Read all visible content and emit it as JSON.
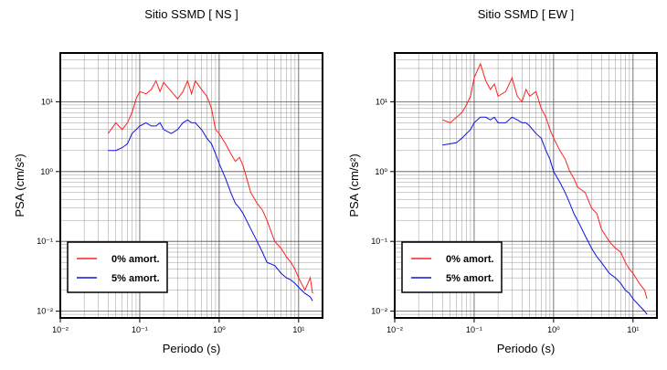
{
  "chart_data": [
    {
      "type": "line",
      "title": "Sitio SSMD [ NS ]",
      "x_label": "Periodo (s)",
      "y_label": "PSA (cm/s²)",
      "x_log": true,
      "y_log": true,
      "grid": true,
      "minor_grid": true,
      "legend": "lower left",
      "xlim": [
        0.01,
        20
      ],
      "ylim": [
        0.008,
        50
      ],
      "xticks": [
        {
          "value": 0.01,
          "label": "10⁻²"
        },
        {
          "value": 0.1,
          "label": "10⁻¹"
        },
        {
          "value": 1,
          "label": "10⁰"
        },
        {
          "value": 10,
          "label": "10¹"
        }
      ],
      "yticks": [
        {
          "value": 0.01,
          "label": "10⁻²"
        },
        {
          "value": 0.1,
          "label": "10⁻¹"
        },
        {
          "value": 1,
          "label": "10⁰"
        },
        {
          "value": 10,
          "label": "10¹"
        }
      ],
      "x": [
        0.04,
        0.05,
        0.06,
        0.07,
        0.08,
        0.09,
        0.1,
        0.12,
        0.14,
        0.16,
        0.18,
        0.2,
        0.25,
        0.3,
        0.35,
        0.4,
        0.45,
        0.5,
        0.6,
        0.7,
        0.8,
        0.9,
        1,
        1.2,
        1.4,
        1.6,
        1.8,
        2,
        2.5,
        3,
        3.5,
        4,
        5,
        6,
        7,
        8,
        9,
        10,
        12,
        14,
        15
      ],
      "series": [
        {
          "name": "0% amort.",
          "color": "#ff2020",
          "values": [
            3.5,
            5,
            4,
            5,
            7,
            11,
            14,
            13,
            15,
            20,
            14,
            19,
            14,
            11,
            14,
            20,
            13,
            20,
            15,
            12,
            8,
            4,
            3.5,
            2.5,
            1.8,
            1.4,
            1.6,
            1.2,
            0.5,
            0.35,
            0.28,
            0.2,
            0.1,
            0.08,
            0.06,
            0.05,
            0.04,
            0.03,
            0.02,
            0.03,
            0.018
          ]
        },
        {
          "name": "5% amort.",
          "color": "#1010e0",
          "values": [
            2,
            2,
            2.2,
            2.5,
            3.5,
            4,
            4.5,
            5,
            4.5,
            4.5,
            5,
            4,
            3.5,
            4,
            5,
            5.5,
            5,
            5,
            4,
            3,
            2.5,
            1.8,
            1.3,
            0.8,
            0.5,
            0.35,
            0.3,
            0.25,
            0.15,
            0.1,
            0.07,
            0.05,
            0.045,
            0.035,
            0.03,
            0.028,
            0.025,
            0.022,
            0.018,
            0.016,
            0.014
          ]
        }
      ]
    },
    {
      "type": "line",
      "title": "Sitio SSMD [ EW ]",
      "x_label": "Periodo (s)",
      "y_label": "PSA (cm/s²)",
      "x_log": true,
      "y_log": true,
      "grid": true,
      "minor_grid": true,
      "legend": "lower left",
      "xlim": [
        0.01,
        20
      ],
      "ylim": [
        0.008,
        50
      ],
      "xticks": [
        {
          "value": 0.01,
          "label": "10⁻²"
        },
        {
          "value": 0.1,
          "label": "10⁻¹"
        },
        {
          "value": 1,
          "label": "10⁰"
        },
        {
          "value": 10,
          "label": "10¹"
        }
      ],
      "yticks": [
        {
          "value": 0.01,
          "label": "10⁻²"
        },
        {
          "value": 0.1,
          "label": "10⁻¹"
        },
        {
          "value": 1,
          "label": "10⁰"
        },
        {
          "value": 10,
          "label": "10¹"
        }
      ],
      "x": [
        0.04,
        0.05,
        0.06,
        0.07,
        0.08,
        0.09,
        0.1,
        0.12,
        0.14,
        0.16,
        0.18,
        0.2,
        0.25,
        0.3,
        0.35,
        0.4,
        0.45,
        0.5,
        0.6,
        0.7,
        0.8,
        0.9,
        1,
        1.2,
        1.4,
        1.6,
        1.8,
        2,
        2.5,
        3,
        3.5,
        4,
        5,
        6,
        7,
        8,
        9,
        10,
        12,
        14,
        15
      ],
      "series": [
        {
          "name": "0% amort.",
          "color": "#ff2020",
          "values": [
            5.5,
            5,
            6,
            7,
            9,
            12,
            22,
            35,
            20,
            15,
            18,
            12,
            14,
            22,
            12,
            10,
            15,
            12,
            14,
            8,
            6,
            4,
            3,
            2,
            1.5,
            1,
            0.8,
            0.6,
            0.5,
            0.3,
            0.25,
            0.15,
            0.1,
            0.08,
            0.07,
            0.05,
            0.04,
            0.035,
            0.025,
            0.02,
            0.015
          ]
        },
        {
          "name": "5% amort.",
          "color": "#1010e0",
          "values": [
            2.4,
            2.5,
            2.6,
            3,
            3.5,
            4,
            5,
            6,
            6,
            5.5,
            6,
            5,
            5,
            6,
            5.5,
            5,
            5,
            4.5,
            3.5,
            3,
            2,
            1.5,
            1,
            0.7,
            0.5,
            0.35,
            0.25,
            0.2,
            0.12,
            0.08,
            0.06,
            0.05,
            0.035,
            0.03,
            0.025,
            0.02,
            0.018,
            0.015,
            0.012,
            0.01,
            0.009
          ]
        }
      ]
    }
  ]
}
